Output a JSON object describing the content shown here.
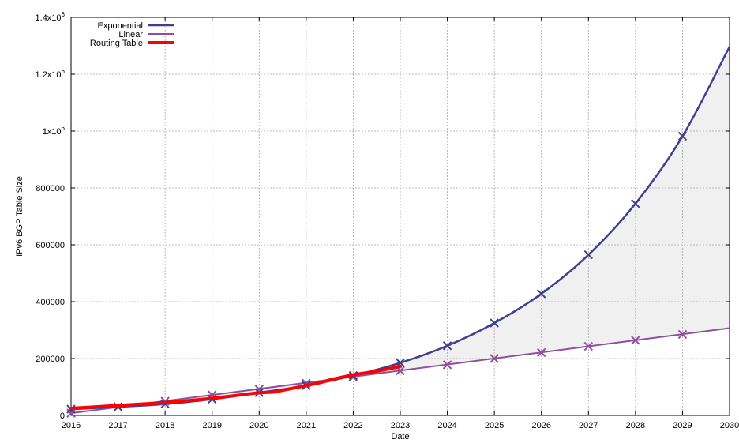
{
  "chart_data": {
    "type": "line",
    "title": "",
    "xlabel": "Date",
    "ylabel": "IPv6 BGP Table Size",
    "xlim": [
      2016,
      2030
    ],
    "ylim": [
      0,
      1400000
    ],
    "grid": true,
    "legend_position": "top-left",
    "x_ticks": [
      "2016",
      "2017",
      "2018",
      "2019",
      "2020",
      "2021",
      "2022",
      "2023",
      "2024",
      "2025",
      "2026",
      "2027",
      "2028",
      "2029",
      "2030"
    ],
    "y_ticks": [
      {
        "value": 0,
        "base": "0",
        "exp": ""
      },
      {
        "value": 200000,
        "base": "200000",
        "exp": ""
      },
      {
        "value": 400000,
        "base": "400000",
        "exp": ""
      },
      {
        "value": 600000,
        "base": "600000",
        "exp": ""
      },
      {
        "value": 800000,
        "base": "800000",
        "exp": ""
      },
      {
        "value": 1000000,
        "base": "1x10",
        "exp": "6"
      },
      {
        "value": 1200000,
        "base": "1.2x10",
        "exp": "6"
      },
      {
        "value": 1400000,
        "base": "1.4x10",
        "exp": "6"
      }
    ],
    "series": [
      {
        "name": "Exponential",
        "color": "#3f3f8f",
        "marker_x": [
          2016,
          2017,
          2018,
          2019,
          2020,
          2021,
          2022,
          2023,
          2024,
          2025,
          2026,
          2027,
          2028,
          2029
        ],
        "marker_y": [
          22000,
          30000,
          40000,
          57000,
          80000,
          105000,
          140000,
          185000,
          245000,
          325000,
          428000,
          565000,
          745000,
          982000
        ],
        "curve_x": [
          2016,
          2017,
          2018,
          2019,
          2020,
          2021,
          2022,
          2023,
          2024,
          2025,
          2026,
          2027,
          2028,
          2029,
          2030
        ],
        "curve_y": [
          22000,
          30000,
          40000,
          57000,
          80000,
          105000,
          140000,
          185000,
          245000,
          325000,
          428000,
          565000,
          745000,
          982000,
          1297000
        ]
      },
      {
        "name": "Linear",
        "color": "#8f4f9f",
        "marker_x": [
          2016,
          2017,
          2018,
          2019,
          2020,
          2021,
          2022,
          2023,
          2024,
          2025,
          2026,
          2027,
          2028,
          2029
        ],
        "marker_y": [
          8000,
          30000,
          50000,
          72000,
          92000,
          113000,
          135000,
          157000,
          178000,
          200000,
          221000,
          243000,
          264000,
          285000
        ],
        "curve_x": [
          2016,
          2030
        ],
        "curve_y": [
          8000,
          307000
        ]
      },
      {
        "name": "Routing Table",
        "color": "#ff0000",
        "x": [
          2016,
          2016.5,
          2017,
          2017.5,
          2018,
          2018.5,
          2019,
          2019.5,
          2020,
          2020.3,
          2020.7,
          2021,
          2021.3,
          2021.5,
          2022,
          2022.5,
          2023
        ],
        "y": [
          25000,
          30000,
          35000,
          40000,
          45000,
          52000,
          60000,
          70000,
          80000,
          82000,
          95000,
          105000,
          115000,
          125000,
          143000,
          155000,
          172000
        ]
      }
    ]
  }
}
